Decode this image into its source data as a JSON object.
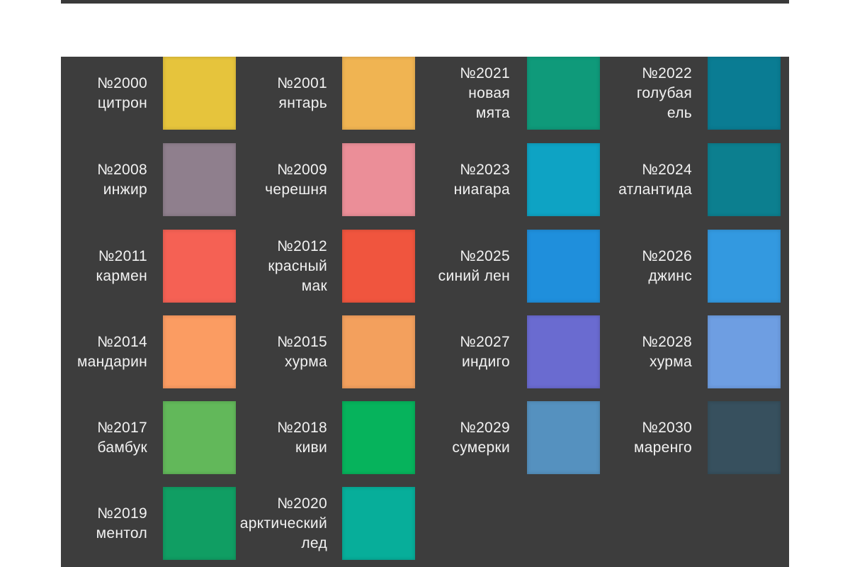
{
  "swatches": [
    {
      "code": "№2000",
      "name_lines": [
        "цитрон"
      ],
      "color": "#e6c43c"
    },
    {
      "code": "№2001",
      "name_lines": [
        "янтарь"
      ],
      "color": "#f0b452"
    },
    {
      "code": "№2021",
      "name_lines": [
        "новая",
        "мята"
      ],
      "color": "#0f9a7a"
    },
    {
      "code": "№2022",
      "name_lines": [
        "голубая",
        "ель"
      ],
      "color": "#0a7c93"
    },
    {
      "code": "№2008",
      "name_lines": [
        "инжир"
      ],
      "color": "#8f7f8d"
    },
    {
      "code": "№2009",
      "name_lines": [
        "черешня"
      ],
      "color": "#eb8e98"
    },
    {
      "code": "№2023",
      "name_lines": [
        "ниагара"
      ],
      "color": "#0ea3c4"
    },
    {
      "code": "№2024",
      "name_lines": [
        "атлантида"
      ],
      "color": "#0c7f8f"
    },
    {
      "code": "№2011",
      "name_lines": [
        "кармен"
      ],
      "color": "#f56154"
    },
    {
      "code": "№2012",
      "name_lines": [
        "красный",
        "мак"
      ],
      "color": "#f0553e"
    },
    {
      "code": "№2025",
      "name_lines": [
        "синий лен"
      ],
      "color": "#1f8fdc"
    },
    {
      "code": "№2026",
      "name_lines": [
        "джинс"
      ],
      "color": "#3399e0"
    },
    {
      "code": "№2014",
      "name_lines": [
        "мандарин"
      ],
      "color": "#fb9c62"
    },
    {
      "code": "№2015",
      "name_lines": [
        "хурма"
      ],
      "color": "#f3a05d"
    },
    {
      "code": "№2027",
      "name_lines": [
        "индиго"
      ],
      "color": "#6a6bd0"
    },
    {
      "code": "№2028",
      "name_lines": [
        "хурма"
      ],
      "color": "#6e9ee2"
    },
    {
      "code": "№2017",
      "name_lines": [
        "бамбук"
      ],
      "color": "#62b85a"
    },
    {
      "code": "№2018",
      "name_lines": [
        "киви"
      ],
      "color": "#06b35c"
    },
    {
      "code": "№2029",
      "name_lines": [
        "сумерки"
      ],
      "color": "#5591bf"
    },
    {
      "code": "№2030",
      "name_lines": [
        "маренго"
      ],
      "color": "#37505e"
    },
    {
      "code": "№2019",
      "name_lines": [
        "ментол"
      ],
      "color": "#109e63"
    },
    {
      "code": "№2020",
      "name_lines": [
        "арктический",
        "лед"
      ],
      "color": "#07ae9a"
    }
  ],
  "colors": {
    "panel_background": "#3d3d3d",
    "label_text": "#f2f2f2"
  }
}
